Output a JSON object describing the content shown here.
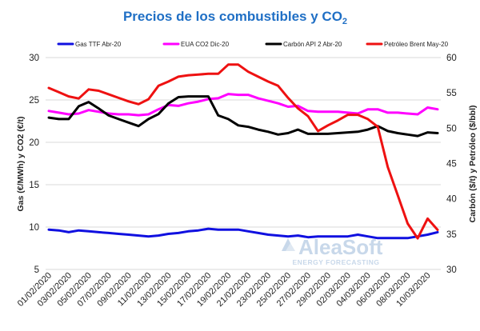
{
  "chart_data": {
    "type": "line",
    "title": "Precios de los combustibles y CO",
    "title_sub": "2",
    "ylabel_left": "Gas (€/MWh) y CO2 (€/t)",
    "ylabel_right": "Carbón ($/t) y Petróleo ($/bbl)",
    "ylim_left": [
      5,
      30
    ],
    "ylim_right": [
      30,
      60
    ],
    "yticks_left": [
      "5",
      "10",
      "15",
      "20",
      "25",
      "30"
    ],
    "yticks_right": [
      "30",
      "35",
      "40",
      "45",
      "50",
      "55",
      "60"
    ],
    "grid": "horizontal",
    "legend_position": "top",
    "x": [
      "01/02/2020",
      "02/02/2020",
      "03/02/2020",
      "04/02/2020",
      "05/02/2020",
      "06/02/2020",
      "07/02/2020",
      "08/02/2020",
      "09/02/2020",
      "10/02/2020",
      "11/02/2020",
      "12/02/2020",
      "13/02/2020",
      "14/02/2020",
      "15/02/2020",
      "16/02/2020",
      "17/02/2020",
      "18/02/2020",
      "19/02/2020",
      "20/02/2020",
      "21/02/2020",
      "22/02/2020",
      "23/02/2020",
      "24/02/2020",
      "25/02/2020",
      "26/02/2020",
      "27/02/2020",
      "28/02/2020",
      "29/02/2020",
      "01/03/2020",
      "02/03/2020",
      "03/03/2020",
      "04/03/2020",
      "05/03/2020",
      "06/03/2020",
      "07/03/2020",
      "08/03/2020",
      "09/03/2020",
      "10/03/2020",
      "11/03/2020"
    ],
    "x_tick_labels": [
      "01/02/2020",
      "03/02/2020",
      "05/02/2020",
      "07/02/2020",
      "09/02/2020",
      "11/02/2020",
      "13/02/2020",
      "15/02/2020",
      "17/02/2020",
      "19/02/2020",
      "21/02/2020",
      "23/02/2020",
      "25/02/2020",
      "27/02/2020",
      "29/02/2020",
      "02/03/2020",
      "04/03/2020",
      "06/03/2020",
      "08/03/2020",
      "10/03/2020"
    ],
    "series": [
      {
        "name": "Gas TTF Abr-20",
        "color": "#1010e0",
        "axis": "left",
        "values": [
          9.7,
          9.6,
          9.4,
          9.6,
          9.5,
          9.4,
          9.3,
          9.2,
          9.1,
          9.0,
          8.9,
          9.0,
          9.2,
          9.3,
          9.5,
          9.6,
          9.8,
          9.7,
          9.7,
          9.7,
          9.5,
          9.3,
          9.1,
          9.0,
          8.9,
          9.0,
          8.8,
          8.9,
          8.9,
          8.9,
          8.9,
          9.1,
          8.9,
          8.7,
          8.7,
          8.7,
          8.7,
          8.9,
          9.1,
          9.4
        ]
      },
      {
        "name": "EUA CO2 Dic-20",
        "color": "#ff00ff",
        "axis": "left",
        "values": [
          23.7,
          23.5,
          23.3,
          23.4,
          23.8,
          23.6,
          23.4,
          23.3,
          23.3,
          23.2,
          23.3,
          23.9,
          24.4,
          24.3,
          24.6,
          24.8,
          25.1,
          25.2,
          25.7,
          25.6,
          25.6,
          25.2,
          24.9,
          24.6,
          24.2,
          24.3,
          23.7,
          23.6,
          23.6,
          23.6,
          23.5,
          23.4,
          23.9,
          23.9,
          23.5,
          23.5,
          23.4,
          23.3,
          24.1,
          23.9
        ]
      },
      {
        "name": "Carbón API 2 Abr-20",
        "color": "#000000",
        "axis": "right",
        "values": [
          51.5,
          51.3,
          51.3,
          53.1,
          53.7,
          52.8,
          51.8,
          51.3,
          50.8,
          50.3,
          51.3,
          52.0,
          53.5,
          54.4,
          54.5,
          54.5,
          54.5,
          51.8,
          51.3,
          50.4,
          50.2,
          49.8,
          49.5,
          49.1,
          49.3,
          49.8,
          49.2,
          49.2,
          49.2,
          49.3,
          49.4,
          49.5,
          49.8,
          50.3,
          49.6,
          49.3,
          49.1,
          48.9,
          49.4,
          49.3
        ]
      },
      {
        "name": "Petróleo Brent May-20",
        "color": "#ee1111",
        "axis": "right",
        "values": [
          55.7,
          55.1,
          54.5,
          54.2,
          55.5,
          55.3,
          54.8,
          54.3,
          53.8,
          53.4,
          54.1,
          56.0,
          56.6,
          57.3,
          57.5,
          57.6,
          57.7,
          57.7,
          59.0,
          59.0,
          58.0,
          57.3,
          56.6,
          56.0,
          54.3,
          52.8,
          51.7,
          49.6,
          50.4,
          51.1,
          51.9,
          51.9,
          51.3,
          50.2,
          44.5,
          40.5,
          36.5,
          34.4,
          37.2,
          35.6
        ]
      }
    ]
  },
  "watermark": {
    "brand": "AleaSoft",
    "tagline": "ENERGY FORECASTING"
  }
}
